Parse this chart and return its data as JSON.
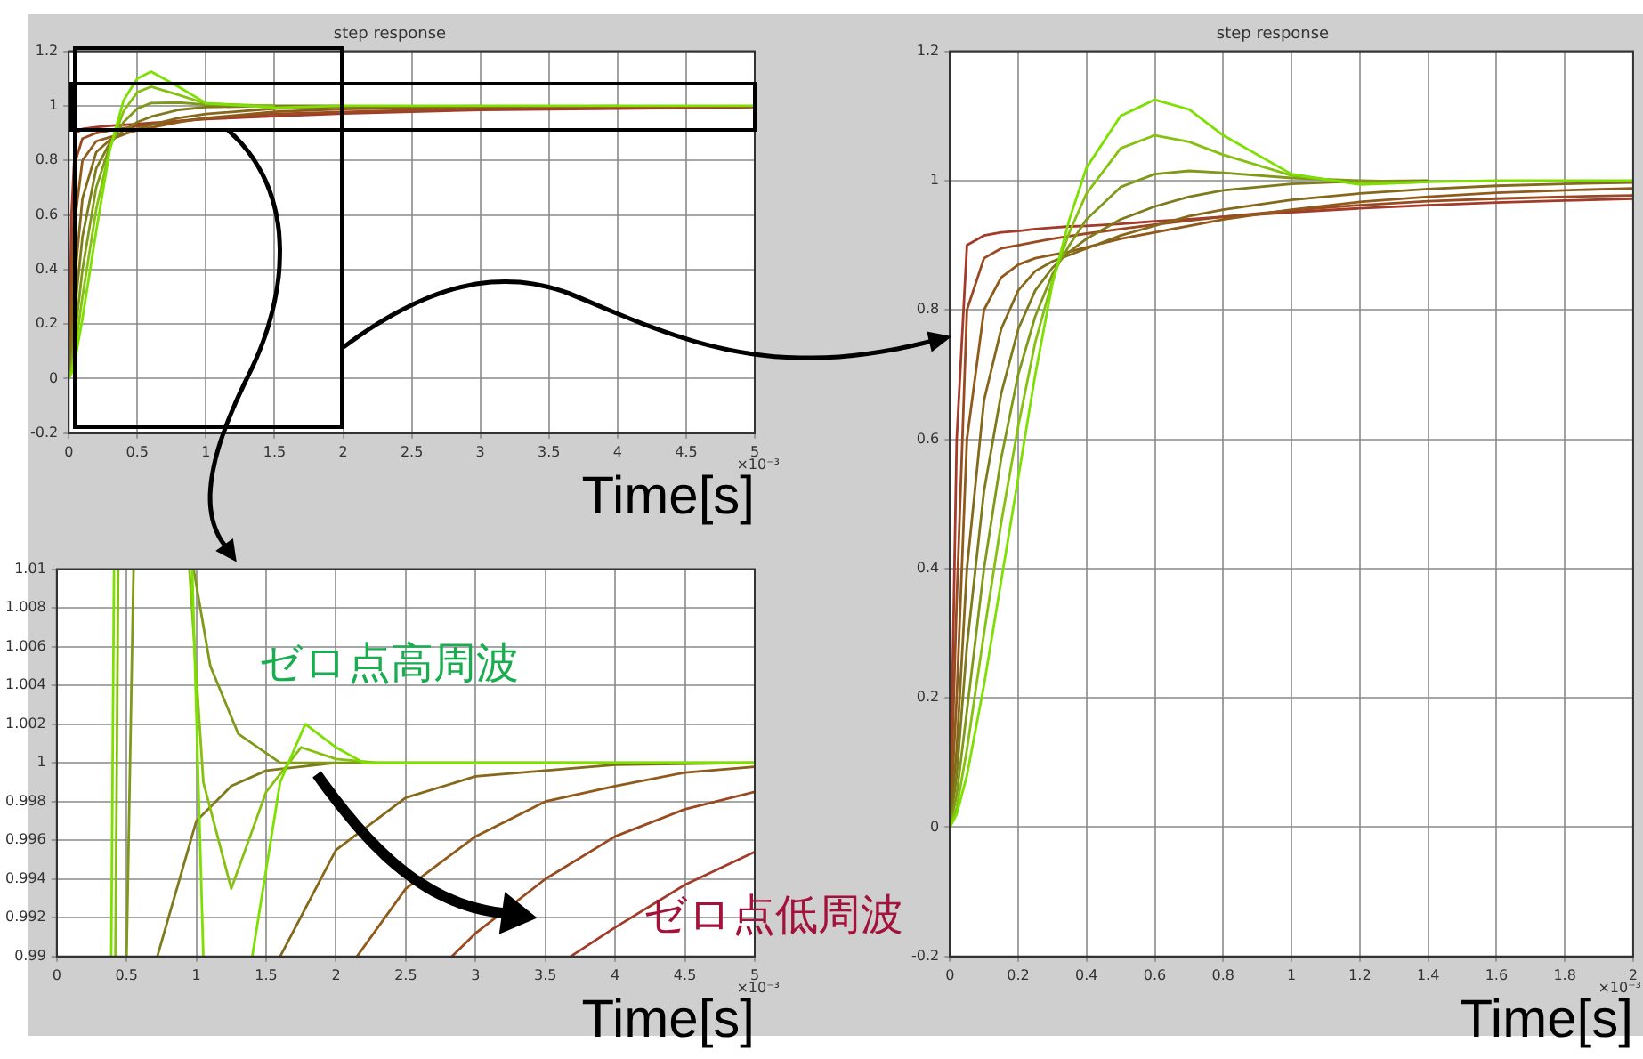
{
  "chart_data": [
    {
      "type": "line",
      "title": "step response",
      "xlabel": "Time[s]",
      "xlim": [
        0,
        5
      ],
      "xticks": [
        0,
        0.5,
        1,
        1.5,
        2,
        2.5,
        3,
        3.5,
        4,
        4.5,
        5
      ],
      "ylim": [
        -0.2,
        1.2
      ],
      "yticks": [
        -0.2,
        0,
        0.2,
        0.4,
        0.6,
        0.8,
        1,
        1.2
      ],
      "grid": true,
      "annotations": [
        "×10⁻³"
      ],
      "x": [
        0,
        0.02,
        0.05,
        0.1,
        0.2,
        0.3,
        0.4,
        0.5,
        0.6,
        0.8,
        1.0,
        1.5,
        2,
        3,
        4,
        5
      ],
      "series": [
        {
          "color": "#a33a2a",
          "values": [
            0,
            0.6,
            0.9,
            0.915,
            0.922,
            0.927,
            0.93,
            0.933,
            0.937,
            0.944,
            0.951,
            0.962,
            0.972,
            0.985,
            0.99,
            0.995
          ]
        },
        {
          "color": "#9a4a20",
          "values": [
            0,
            0.35,
            0.8,
            0.88,
            0.9,
            0.91,
            0.918,
            0.925,
            0.932,
            0.944,
            0.954,
            0.97,
            0.977,
            0.99,
            0.995,
            0.998
          ]
        },
        {
          "color": "#8f5a1a",
          "values": [
            0,
            0.2,
            0.6,
            0.8,
            0.87,
            0.885,
            0.897,
            0.91,
            0.92,
            0.94,
            0.955,
            0.978,
            0.988,
            0.996,
            0.999,
            null
          ]
        },
        {
          "color": "#85681a",
          "values": [
            0,
            0.12,
            0.4,
            0.66,
            0.83,
            0.875,
            0.895,
            0.915,
            0.93,
            0.955,
            0.97,
            0.99,
            0.996,
            0.999,
            null,
            null
          ]
        },
        {
          "color": "#7f7a1a",
          "values": [
            0,
            0.08,
            0.28,
            0.52,
            0.77,
            0.865,
            0.91,
            0.94,
            0.96,
            0.985,
            0.995,
            1.0,
            1.0,
            null,
            null,
            null
          ]
        },
        {
          "color": "#7f9a18",
          "values": [
            0,
            0.05,
            0.18,
            0.4,
            0.7,
            0.855,
            0.94,
            0.99,
            1.01,
            1.012,
            1.004,
            1.0,
            null,
            null,
            null,
            null
          ]
        },
        {
          "color": "#86c010",
          "values": [
            0,
            0.03,
            0.12,
            0.3,
            0.62,
            0.845,
            0.98,
            1.05,
            1.07,
            1.04,
            1.008,
            0.999,
            null,
            null,
            null,
            null
          ]
        },
        {
          "color": "#7de000",
          "values": [
            0,
            0.02,
            0.08,
            0.22,
            0.54,
            0.84,
            1.02,
            1.1,
            1.125,
            1.07,
            1.01,
            0.993,
            1.0,
            1.0,
            1.0,
            1.0
          ]
        }
      ]
    },
    {
      "type": "line",
      "title": "step response",
      "xlabel": "Time[s]",
      "xlim": [
        0,
        2
      ],
      "xticks": [
        0,
        0.2,
        0.4,
        0.6,
        0.8,
        1,
        1.2,
        1.4,
        1.6,
        1.8,
        2
      ],
      "ylim": [
        -0.2,
        1.2
      ],
      "yticks": [
        -0.2,
        0,
        0.2,
        0.4,
        0.6,
        0.8,
        1,
        1.2
      ],
      "grid": true,
      "annotations": [
        "×10⁻³"
      ],
      "x": [
        0,
        0.02,
        0.05,
        0.1,
        0.15,
        0.2,
        0.25,
        0.3,
        0.35,
        0.4,
        0.5,
        0.6,
        0.7,
        0.8,
        1.0,
        1.2,
        1.4,
        1.6,
        1.8,
        2.0
      ],
      "series": [
        {
          "color": "#a33a2a",
          "values": [
            0,
            0.6,
            0.9,
            0.915,
            0.92,
            0.922,
            0.925,
            0.927,
            0.929,
            0.93,
            0.933,
            0.937,
            0.94,
            0.944,
            0.951,
            0.957,
            0.962,
            0.966,
            0.969,
            0.972
          ]
        },
        {
          "color": "#9a4a20",
          "values": [
            0,
            0.35,
            0.8,
            0.88,
            0.895,
            0.9,
            0.905,
            0.91,
            0.914,
            0.918,
            0.925,
            0.932,
            0.938,
            0.944,
            0.954,
            0.962,
            0.968,
            0.972,
            0.975,
            0.977
          ]
        },
        {
          "color": "#8f5a1a",
          "values": [
            0,
            0.2,
            0.6,
            0.8,
            0.85,
            0.87,
            0.88,
            0.885,
            0.89,
            0.897,
            0.91,
            0.92,
            0.93,
            0.94,
            0.955,
            0.967,
            0.975,
            0.981,
            0.985,
            0.988
          ]
        },
        {
          "color": "#85681a",
          "values": [
            0,
            0.12,
            0.4,
            0.66,
            0.77,
            0.83,
            0.86,
            0.875,
            0.885,
            0.895,
            0.915,
            0.93,
            0.945,
            0.955,
            0.97,
            0.98,
            0.987,
            0.992,
            0.995,
            0.997
          ]
        },
        {
          "color": "#7f7a1a",
          "values": [
            0,
            0.08,
            0.28,
            0.52,
            0.67,
            0.77,
            0.83,
            0.865,
            0.89,
            0.91,
            0.94,
            0.96,
            0.975,
            0.985,
            0.995,
            0.999,
            1.0,
            null,
            null,
            null
          ]
        },
        {
          "color": "#7f9a18",
          "values": [
            0,
            0.05,
            0.18,
            0.4,
            0.57,
            0.7,
            0.79,
            0.855,
            0.9,
            0.94,
            0.99,
            1.01,
            1.015,
            1.012,
            1.004,
            1.0,
            0.998,
            null,
            null,
            null
          ]
        },
        {
          "color": "#86c010",
          "values": [
            0,
            0.03,
            0.12,
            0.3,
            0.47,
            0.62,
            0.75,
            0.845,
            0.92,
            0.98,
            1.05,
            1.07,
            1.06,
            1.04,
            1.008,
            0.995,
            0.998,
            null,
            null,
            null
          ]
        },
        {
          "color": "#7de000",
          "values": [
            0,
            0.02,
            0.08,
            0.22,
            0.38,
            0.54,
            0.7,
            0.84,
            0.94,
            1.02,
            1.1,
            1.125,
            1.11,
            1.07,
            1.01,
            0.994,
            0.998,
            1.0,
            1.0,
            1.0
          ]
        }
      ]
    },
    {
      "type": "line",
      "xlabel": "Time[s]",
      "xlim": [
        0,
        5
      ],
      "xticks": [
        0,
        0.5,
        1,
        1.5,
        2,
        2.5,
        3,
        3.5,
        4,
        4.5,
        5
      ],
      "ylim": [
        0.99,
        1.01
      ],
      "yticks": [
        0.99,
        0.992,
        0.994,
        0.996,
        0.998,
        1,
        1.002,
        1.004,
        1.006,
        1.008,
        1.01
      ],
      "grid": true,
      "annotations": [
        "ゼロ点高周波",
        "ゼロ点低周波",
        "×10⁻³"
      ],
      "series": [
        {
          "color": "#a33a2a",
          "x": [
            3.68,
            4,
            4.5,
            5
          ],
          "values": [
            0.99,
            0.9915,
            0.9937,
            0.9954
          ]
        },
        {
          "color": "#9a4a20",
          "x": [
            2.83,
            3,
            3.5,
            4,
            4.5,
            5
          ],
          "values": [
            0.99,
            0.9912,
            0.994,
            0.9962,
            0.9976,
            0.9985
          ]
        },
        {
          "color": "#8f5a1a",
          "x": [
            2.15,
            2.5,
            3,
            3.5,
            4,
            4.5,
            5
          ],
          "values": [
            0.99,
            0.9935,
            0.9962,
            0.998,
            0.9988,
            0.9995,
            0.9998
          ]
        },
        {
          "color": "#85681a",
          "x": [
            1.6,
            2,
            2.5,
            3,
            4,
            5
          ],
          "values": [
            0.99,
            0.9955,
            0.9982,
            0.9993,
            0.9999,
            1
          ]
        },
        {
          "color": "#7f7a1a",
          "x": [
            0.72,
            1,
            1.25,
            1.5,
            2
          ],
          "values": [
            0.99,
            0.997,
            0.9988,
            0.9996,
            1
          ]
        },
        {
          "color": "#7f9a18",
          "x": [
            0.5,
            0.55,
            0.6,
            0.98,
            1.1,
            1.3,
            1.6,
            5
          ],
          "values": [
            0.99,
            1.01,
            null,
            1.01,
            1.005,
            1.0015,
            1,
            1
          ]
        },
        {
          "color": "#86c010",
          "x": [
            0.42,
            0.44,
            0.5,
            0.95,
            1.05,
            1.25,
            1.5,
            1.75,
            2,
            2.3,
            5
          ],
          "values": [
            0.99,
            1.01,
            null,
            1.01,
            0.999,
            0.9935,
            0.9985,
            1.0008,
            1.0002,
            1,
            1
          ]
        },
        {
          "color": "#7de000",
          "x": [
            0.39,
            0.41,
            0.5,
            0.97,
            1.05,
            1.1,
            1.4,
            1.6,
            1.78,
            2,
            2.2,
            5
          ],
          "values": [
            0.99,
            1.01,
            null,
            1.01,
            0.99,
            null,
            0.99,
            0.999,
            1.002,
            1.0008,
            1,
            1
          ]
        }
      ]
    }
  ]
}
